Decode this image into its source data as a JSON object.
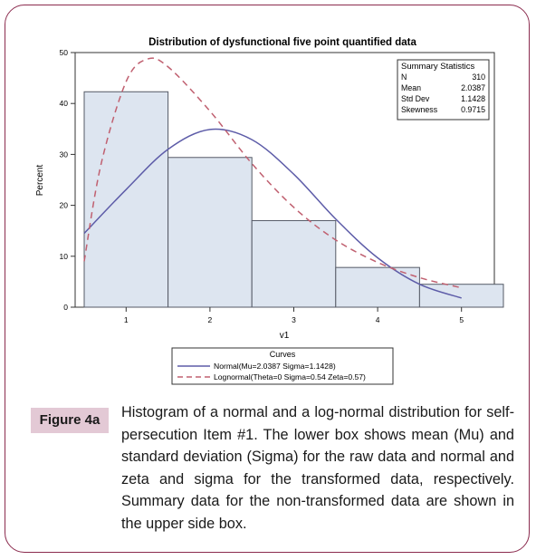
{
  "chart_data": {
    "type": "bar",
    "title": "Distribution of dysfunctional five point quantified data",
    "xlabel": "v1",
    "ylabel": "Percent",
    "categories": [
      "1",
      "2",
      "3",
      "4",
      "5"
    ],
    "values": [
      42.3,
      29.4,
      17.0,
      7.8,
      4.5
    ],
    "ylim": [
      0,
      50
    ],
    "yticks": [
      "0",
      "10",
      "20",
      "30",
      "40",
      "50"
    ],
    "xlim": [
      0.5,
      5.5
    ],
    "grid": false,
    "curves": [
      {
        "name": "Normal(Mu=2.0387 Sigma=1.1428)",
        "color": "#5d5ca8",
        "style": "solid",
        "x": [
          0.5,
          1.0,
          1.5,
          2.0,
          2.5,
          3.0,
          3.5,
          4.0,
          4.5,
          5.0,
          5.5
        ],
        "y": [
          14.5,
          23.1,
          31.0,
          34.9,
          32.9,
          26.1,
          17.3,
          9.7,
          4.5,
          1.8,
          0.6
        ]
      },
      {
        "name": "Lognormal(Theta=0 Sigma=0.54 Zeta=0.57)",
        "color": "#c06070",
        "style": "dashed",
        "x": [
          0.5,
          0.7,
          1.0,
          1.25,
          1.5,
          2.0,
          2.5,
          3.0,
          3.5,
          4.0,
          4.5,
          5.0,
          5.5
        ],
        "y": [
          9.0,
          28.0,
          44.3,
          48.7,
          47.2,
          38.5,
          28.2,
          19.6,
          13.2,
          8.8,
          5.8,
          3.8,
          1.5
        ]
      }
    ],
    "legend_title": "Curves",
    "legend_placement": "bottom",
    "stats_box": {
      "title": "Summary Statistics",
      "rows": [
        {
          "label": "N",
          "value": "310"
        },
        {
          "label": "Mean",
          "value": "2.0387"
        },
        {
          "label": "Std Dev",
          "value": "1.1428"
        },
        {
          "label": "Skewness",
          "value": "0.9715"
        }
      ]
    },
    "colors": {
      "bar_fill": "#dde5f0",
      "bar_stroke": "#555a66",
      "frame": "#8b2b4e"
    }
  },
  "caption": {
    "tag": "Figure 4a",
    "text": "Histogram of a normal and a log-normal distribution for self-persecution Item #1. The lower box shows mean (Mu) and standard deviation (Sigma) for the raw data and normal and zeta and sigma for the transformed data, respectively. Summary data for the non-transformed data are shown in the upper side box."
  }
}
